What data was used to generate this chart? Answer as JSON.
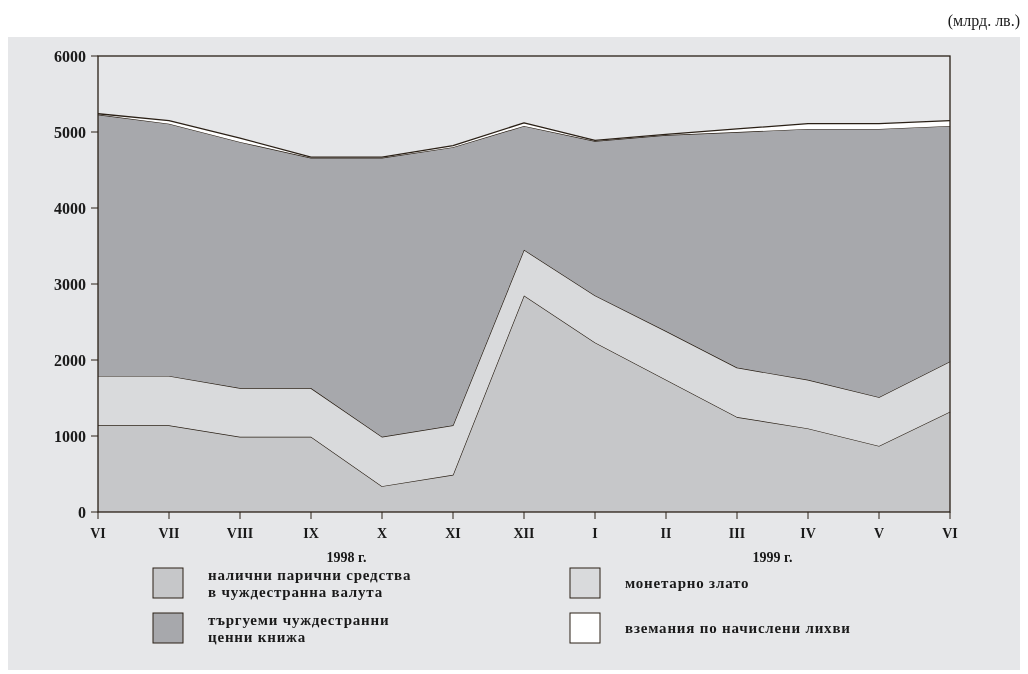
{
  "chart_data": {
    "type": "area",
    "stacked": true,
    "categories": [
      "VI",
      "VII",
      "VIII",
      "IX",
      "X",
      "XI",
      "XII",
      "I",
      "II",
      "III",
      "IV",
      "V",
      "VI"
    ],
    "series": [
      {
        "name": "налични парични средства\nв чуждестранна валута",
        "color": "#c6c7c9",
        "values": [
          1140,
          1140,
          990,
          990,
          340,
          490,
          2850,
          2230,
          1740,
          1250,
          1100,
          870,
          1320
        ]
      },
      {
        "name": "монетарно злато",
        "color": "#d9dadc",
        "values": [
          650,
          650,
          640,
          640,
          650,
          650,
          600,
          620,
          640,
          650,
          640,
          640,
          660
        ]
      },
      {
        "name": "търгуеми чуждестранни\nценни книжа",
        "color": "#a7a8ac",
        "values": [
          3440,
          3320,
          3240,
          3030,
          3670,
          3660,
          1630,
          2030,
          2580,
          3100,
          3300,
          3530,
          3100
        ]
      },
      {
        "name": "вземания по начислени лихви",
        "color": "#ffffff",
        "values": [
          10,
          40,
          50,
          10,
          10,
          20,
          40,
          10,
          10,
          40,
          70,
          70,
          70
        ]
      }
    ],
    "ylim": [
      0,
      6000
    ],
    "yticks": [
      0,
      1000,
      2000,
      3000,
      4000,
      5000,
      6000
    ],
    "legend": "bottom",
    "annotations": [
      "(млрд. лв.)",
      "1998 г.",
      "1999 г."
    ]
  }
}
